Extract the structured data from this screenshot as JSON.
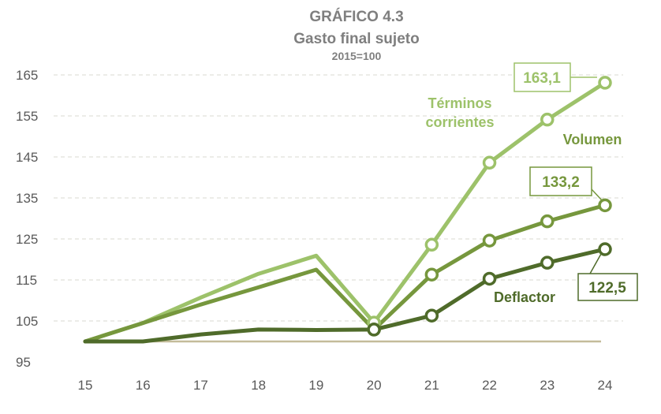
{
  "chart_data": {
    "type": "line",
    "title": "GRÁFICO 4.3",
    "subtitle": "Gasto final sujeto",
    "note": "2015=100",
    "x": [
      "15",
      "16",
      "17",
      "18",
      "19",
      "20",
      "21",
      "22",
      "23",
      "24"
    ],
    "ylim": [
      95,
      165
    ],
    "yticks": [
      "95",
      "105",
      "115",
      "125",
      "135",
      "145",
      "155",
      "165"
    ],
    "grid": true,
    "baseline": 100,
    "series": [
      {
        "name": "Términos corrientes",
        "color": "#9dc26a",
        "values": [
          100,
          104.5,
          110.7,
          116.5,
          120.9,
          104.6,
          123.6,
          143.6,
          154.1,
          163.1
        ]
      },
      {
        "name": "Volumen",
        "color": "#76973d",
        "values": [
          100,
          104.5,
          109.0,
          113.2,
          117.5,
          102.9,
          116.3,
          124.6,
          129.3,
          133.2
        ]
      },
      {
        "name": "Deflactor",
        "color": "#4f6b2a",
        "values": [
          100,
          100,
          101.7,
          102.9,
          102.8,
          102.9,
          106.3,
          115.3,
          119.2,
          122.5
        ]
      }
    ],
    "series_labels": {
      "corrientes_1": "Términos",
      "corrientes_2": "corrientes",
      "volumen": "Volumen",
      "deflactor": "Deflactor"
    },
    "data_labels": {
      "corrientes": "163,1",
      "volumen": "133,2",
      "deflactor": "122,5"
    }
  }
}
